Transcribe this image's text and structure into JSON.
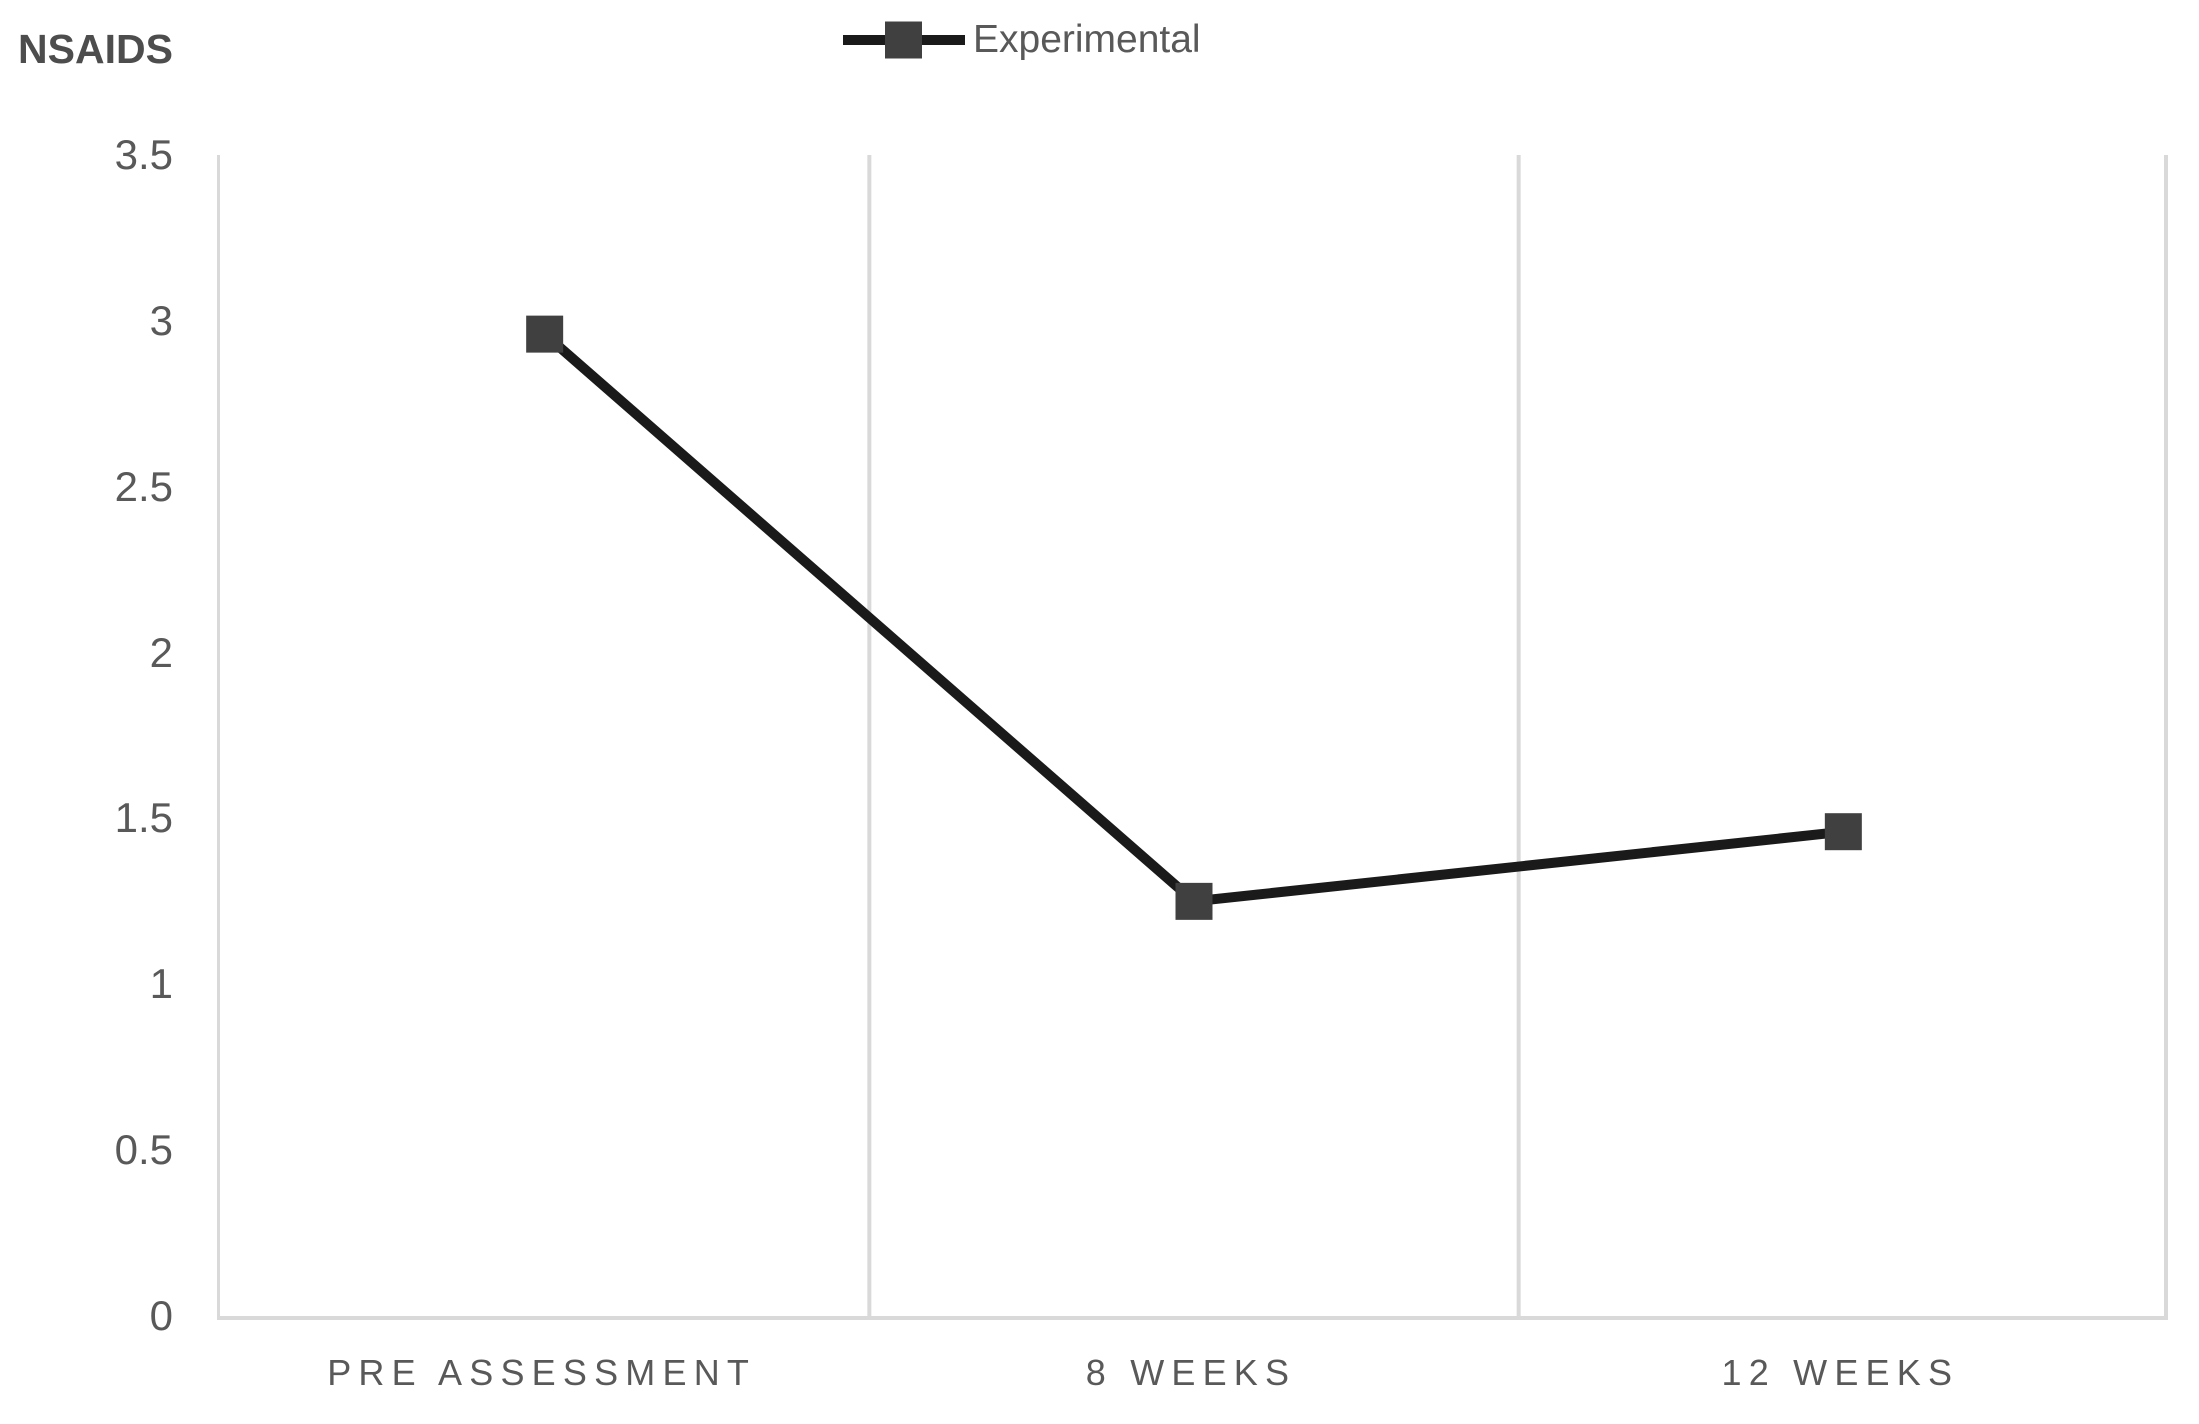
{
  "chart_data": {
    "type": "line",
    "title": "NSAIDS",
    "categories": [
      "PRE ASSESSMENT",
      "8 WEEKS",
      "12 WEEKS"
    ],
    "series": [
      {
        "name": "Experimental",
        "values": [
          2.96,
          1.25,
          1.46
        ]
      }
    ],
    "xlabel": "",
    "ylabel": "",
    "ylim": [
      0,
      3.5
    ],
    "y_ticks": [
      3.5,
      3,
      2.5,
      2,
      1.5,
      1,
      0.5,
      0
    ],
    "grid": "vertical-category-boundaries-only",
    "legend_position": "top-center",
    "marker_shape": "square",
    "colors": {
      "line": "#1a1a1a",
      "marker": "#404040",
      "gridline": "#d9d9d9",
      "axis": "#d9d9d9",
      "tick_label": "#595959",
      "category_label": "#595959",
      "title": "#4d4d4d",
      "legend_text": "#595959",
      "background": "#ffffff"
    }
  }
}
